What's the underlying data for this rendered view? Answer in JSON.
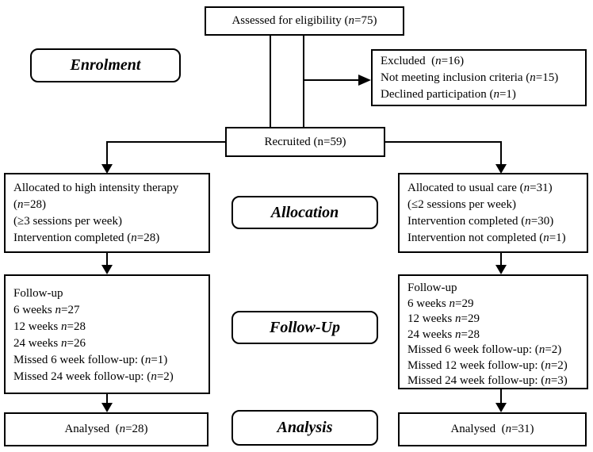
{
  "diagram": {
    "assessed": {
      "text": "Assessed for eligibility (n=75)"
    },
    "excluded": {
      "lines": [
        "Excluded  (n=16)",
        "Not meeting inclusion criteria (n=15)",
        "Declined participation (n=1)"
      ]
    },
    "recruited": {
      "text": "Recruited (n=59)"
    },
    "left_allocation": {
      "lines": [
        "Allocated to high intensity therapy",
        "(n=28)",
        "(≥3 sessions per week)",
        "Intervention completed (n=28)"
      ]
    },
    "right_allocation": {
      "lines": [
        "Allocated to usual care (n=31)",
        "(≤2 sessions per week)",
        "Intervention completed (n=30)",
        "Intervention not completed (n=1)"
      ]
    },
    "left_followup": {
      "lines": [
        "Follow-up",
        "6 weeks n=27",
        "12 weeks n=28",
        "24 weeks n=26",
        "Missed 6 week follow-up: (n=1)",
        "Missed 24 week follow-up: (n=2)"
      ]
    },
    "right_followup": {
      "lines": [
        "Follow-up",
        "6 weeks n=29",
        "12 weeks n=29",
        "24 weeks n=28",
        "Missed 6 week follow-up: (n=2)",
        "Missed 12 week follow-up: (n=2)",
        "Missed 24 week follow-up: (n=3)"
      ]
    },
    "left_analysed": {
      "text": "Analysed  (n=28)"
    },
    "right_analysed": {
      "text": "Analysed  (n=31)"
    },
    "stages": {
      "enrolment": "Enrolment",
      "allocation": "Allocation",
      "followup": "Follow-Up",
      "analysis": "Analysis"
    }
  },
  "colors": {
    "border": "#000000",
    "background": "#ffffff",
    "text": "#000000"
  }
}
